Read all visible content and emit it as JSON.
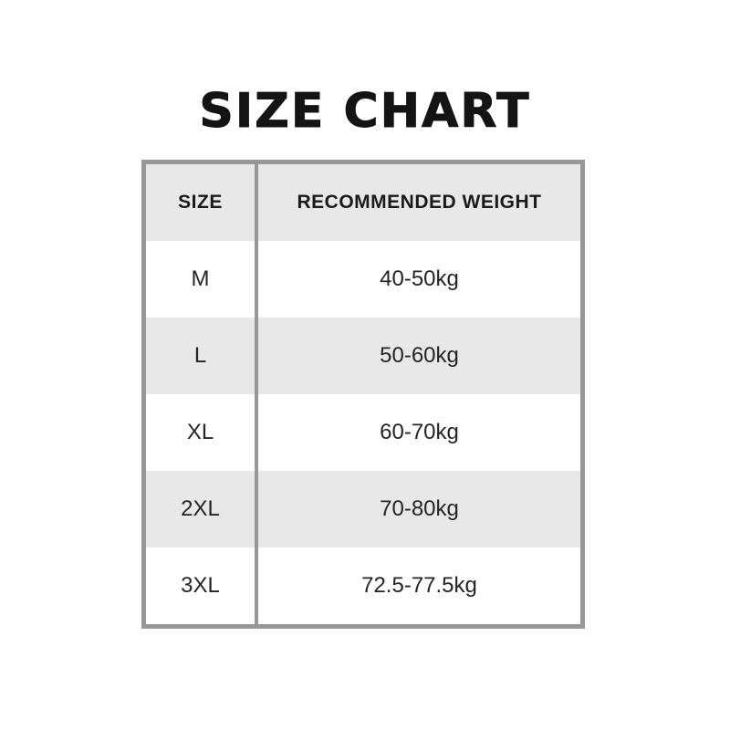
{
  "title": "SIZE CHART",
  "table": {
    "columns": [
      "SIZE",
      "RECOMMENDED WEIGHT"
    ],
    "rows": [
      {
        "size": "M",
        "weight": "40-50kg"
      },
      {
        "size": "L",
        "weight": "50-60kg"
      },
      {
        "size": "XL",
        "weight": "60-70kg"
      },
      {
        "size": "2XL",
        "weight": "70-80kg"
      },
      {
        "size": "3XL",
        "weight": "72.5-77.5kg"
      }
    ]
  },
  "colors": {
    "background": "#ffffff",
    "border_gray": "#979797",
    "row_alt_gray": "#e8e8e8",
    "text_black": "#1a1a1a"
  },
  "chart_data": {
    "type": "table",
    "title": "SIZE CHART",
    "columns": [
      "SIZE",
      "RECOMMENDED WEIGHT"
    ],
    "rows": [
      [
        "M",
        "40-50kg"
      ],
      [
        "L",
        "50-60kg"
      ],
      [
        "XL",
        "60-70kg"
      ],
      [
        "2XL",
        "70-80kg"
      ],
      [
        "3XL",
        "72.5-77.5kg"
      ]
    ],
    "layout": {
      "header_background": "#e8e8e8",
      "alternating_rows": true,
      "grid": "outer-border-and-column-divider-only"
    }
  }
}
